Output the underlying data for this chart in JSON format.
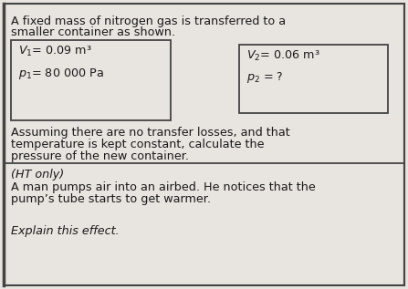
{
  "bg_color": "#e8e4df",
  "inner_bg": "#e8e4df",
  "border_color": "#444444",
  "box_color": "#e8e4df",
  "top_text_line1": "A fixed mass of nitrogen gas is transferred to a",
  "top_text_line2": "smaller container as shown.",
  "box1_line1": "$V_1$= 0.09 m³",
  "box1_line2": "$p_1$= 80 000 Pa",
  "box2_line1": "$V_2$= 0.06 m³",
  "box2_line2": "$p_2$ = ?",
  "mid_text_line1": "Assuming there are no transfer losses, and that",
  "mid_text_line2": "temperature is kept constant, calculate the",
  "mid_text_line3": "pressure of the new container.",
  "bot_line1": "(HT only)",
  "bot_line2": "A man pumps air into an airbed. He notices that the",
  "bot_line3": "pump’s tube starts to get warmer.",
  "bot_line4": "Explain this effect.",
  "font_size": 9.2,
  "text_color": "#1a1a1a"
}
